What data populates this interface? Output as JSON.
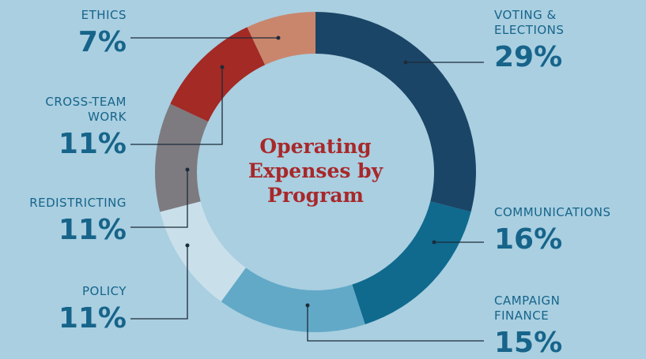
{
  "chart_data": {
    "type": "pie",
    "donut": true,
    "title": "Operating Expenses by Program",
    "categories": [
      "VOTING & ELECTIONS",
      "COMMUNICATIONS",
      "CAMPAIGN FINANCE",
      "POLICY",
      "REDISTRICTING",
      "CROSS-TEAM WORK",
      "ETHICS"
    ],
    "values": [
      29,
      16,
      15,
      11,
      11,
      11,
      7
    ],
    "value_labels": [
      "29%",
      "16%",
      "15%",
      "11%",
      "11%",
      "11%",
      "7%"
    ],
    "colors": [
      "#1b4566",
      "#0f6a8e",
      "#62a9c7",
      "#c9e0ea",
      "#7d7b80",
      "#a32a25",
      "#c9866c"
    ]
  }
}
